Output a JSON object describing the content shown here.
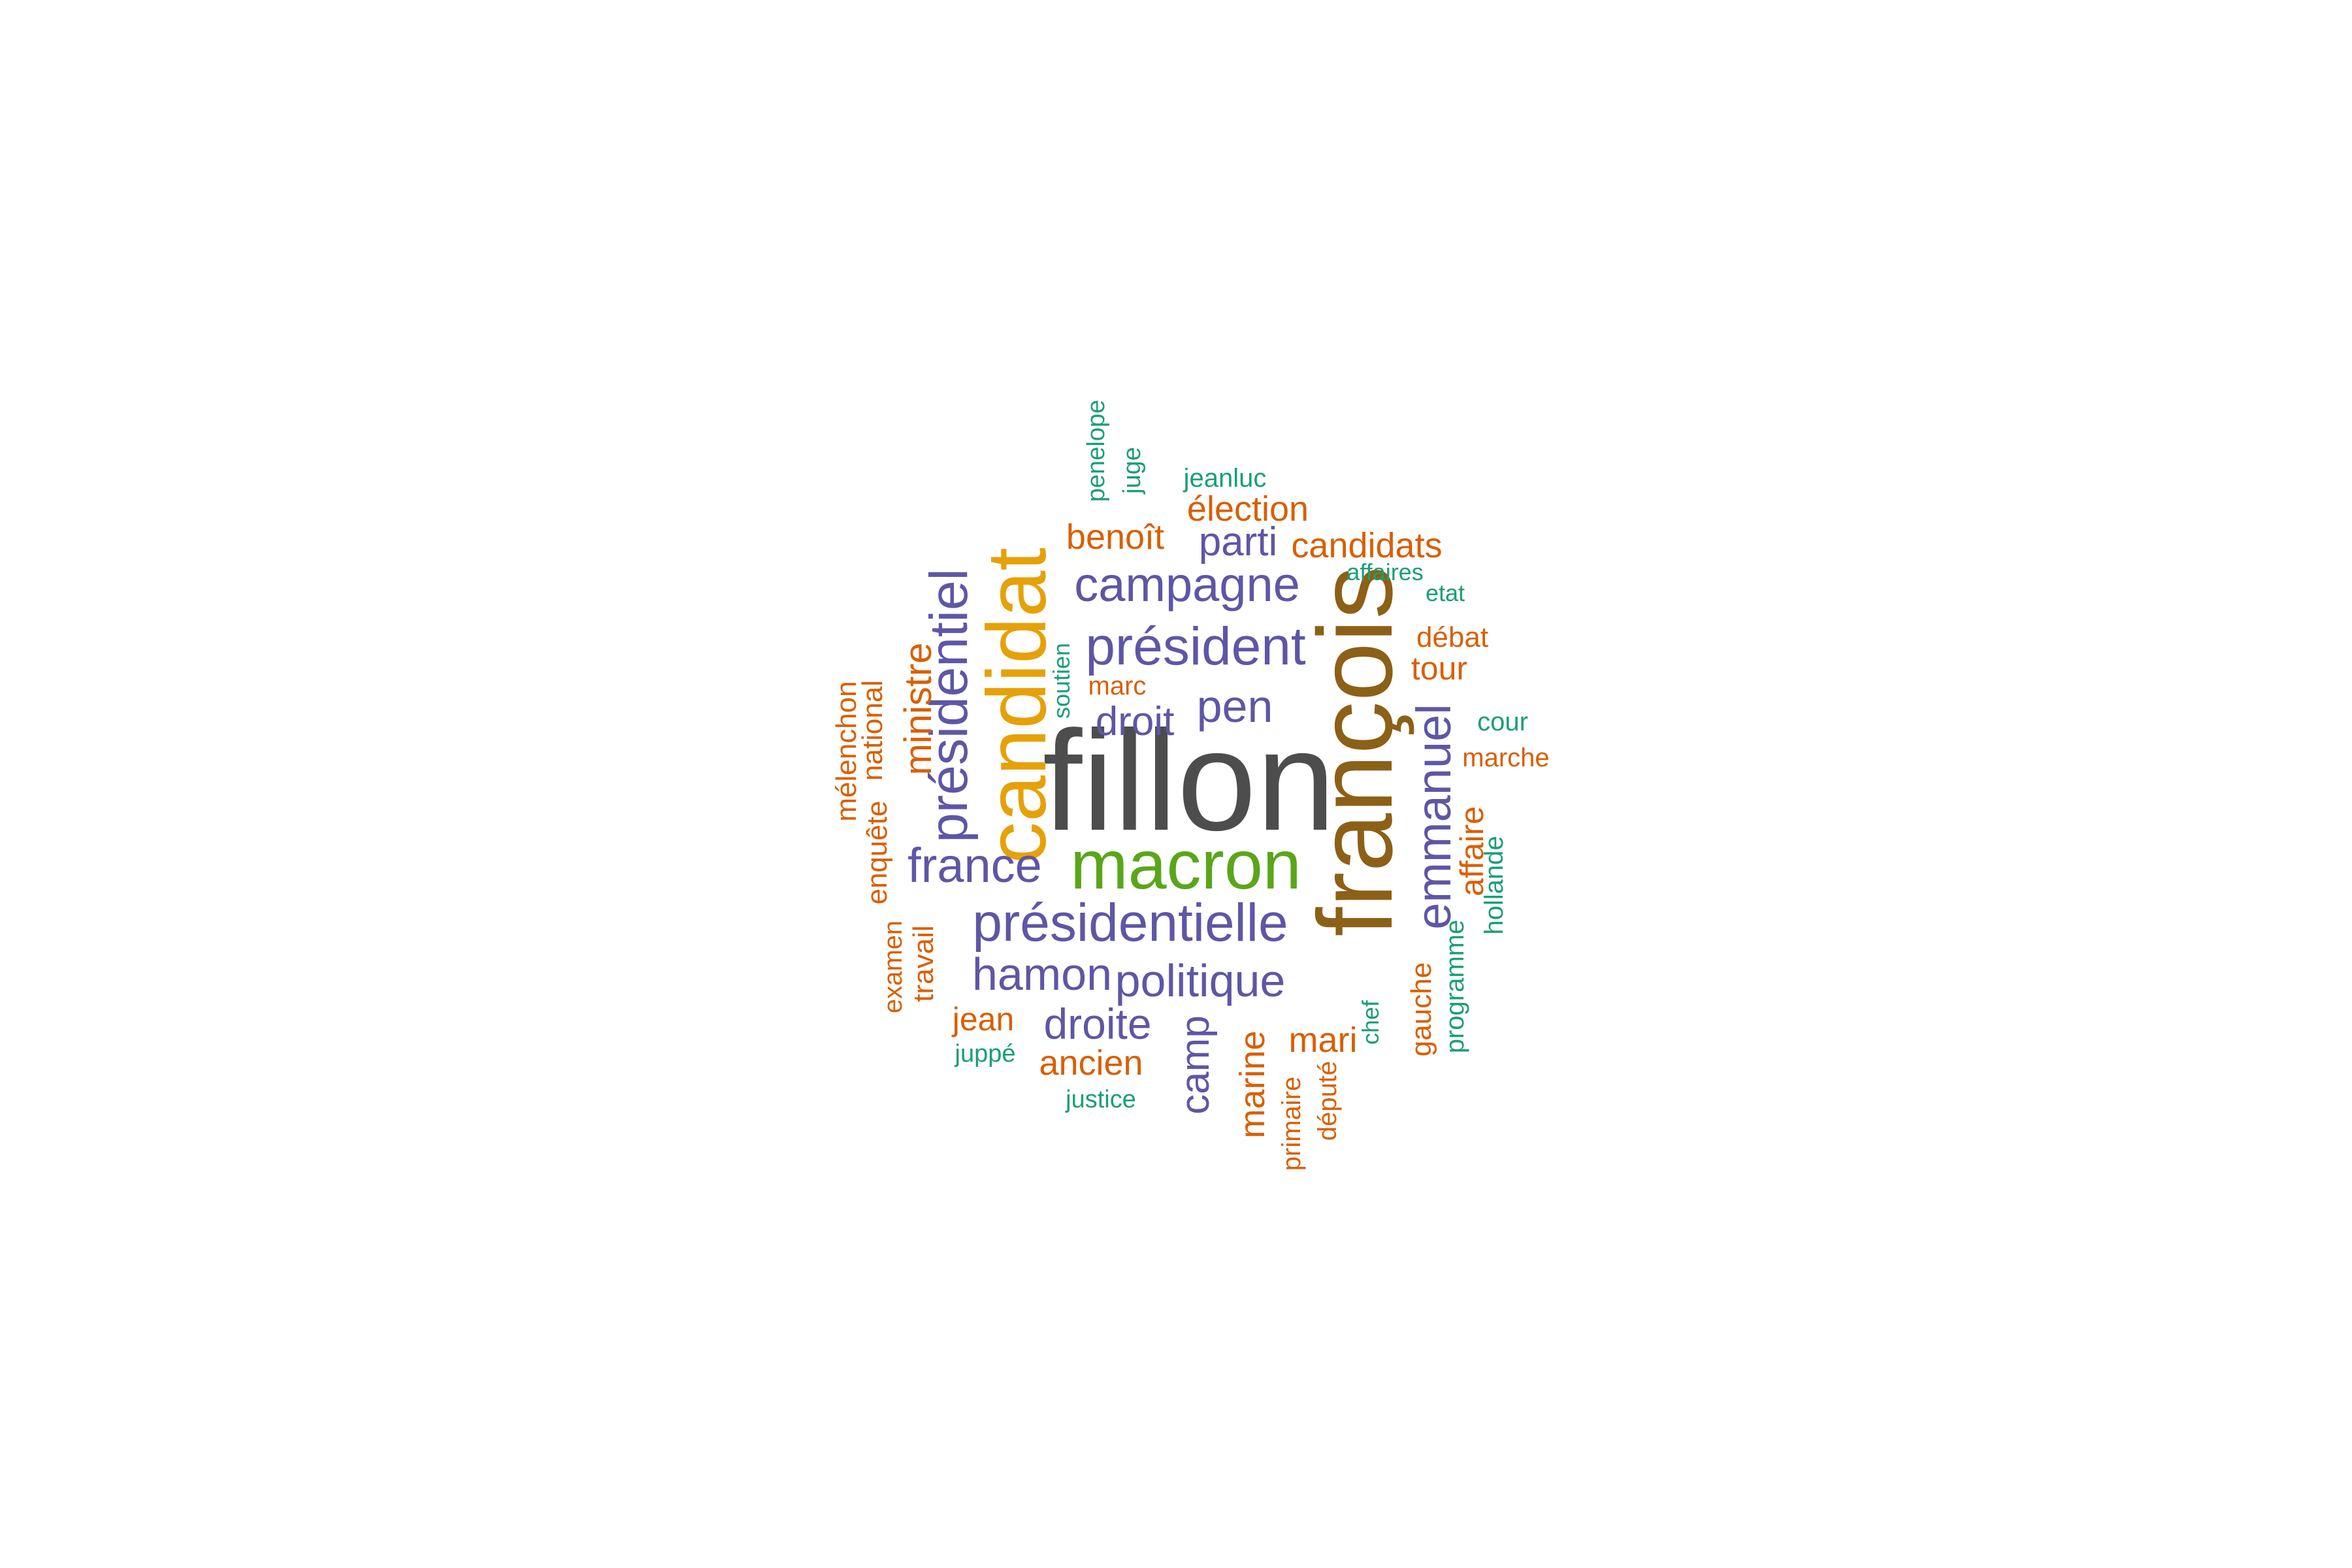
{
  "colors": {
    "gray": "#4d4d4d",
    "orange": "#d95f02",
    "purple": "#5e56a6",
    "teal": "#1b9e77",
    "gold": "#e6a109",
    "green": "#5aa61a",
    "brown": "#8c6016"
  },
  "words": [
    {
      "text": "fillon",
      "color": "gray"
    },
    {
      "text": "françois",
      "color": "brown"
    },
    {
      "text": "candidat",
      "color": "gold"
    },
    {
      "text": "macron",
      "color": "green"
    },
    {
      "text": "présidentielle",
      "color": "purple"
    },
    {
      "text": "président",
      "color": "purple"
    },
    {
      "text": "présidentiel",
      "color": "purple"
    },
    {
      "text": "campagne",
      "color": "purple"
    },
    {
      "text": "france",
      "color": "purple"
    },
    {
      "text": "emmanuel",
      "color": "purple"
    },
    {
      "text": "hamon",
      "color": "purple"
    },
    {
      "text": "politique",
      "color": "purple"
    },
    {
      "text": "pen",
      "color": "purple"
    },
    {
      "text": "droite",
      "color": "purple"
    },
    {
      "text": "parti",
      "color": "purple"
    },
    {
      "text": "droit",
      "color": "purple"
    },
    {
      "text": "camp",
      "color": "purple"
    },
    {
      "text": "ministre",
      "color": "orange"
    },
    {
      "text": "benoît",
      "color": "orange"
    },
    {
      "text": "élection",
      "color": "orange"
    },
    {
      "text": "candidats",
      "color": "orange"
    },
    {
      "text": "marine",
      "color": "orange"
    },
    {
      "text": "mari",
      "color": "orange"
    },
    {
      "text": "ancien",
      "color": "orange"
    },
    {
      "text": "affaire",
      "color": "orange"
    },
    {
      "text": "tour",
      "color": "orange"
    },
    {
      "text": "jean",
      "color": "orange"
    },
    {
      "text": "débat",
      "color": "orange"
    },
    {
      "text": "gauche",
      "color": "orange"
    },
    {
      "text": "national",
      "color": "orange"
    },
    {
      "text": "mélenchon",
      "color": "orange"
    },
    {
      "text": "enquête",
      "color": "orange"
    },
    {
      "text": "travail",
      "color": "orange"
    },
    {
      "text": "examen",
      "color": "orange"
    },
    {
      "text": "marc",
      "color": "orange"
    },
    {
      "text": "marche",
      "color": "orange"
    },
    {
      "text": "député",
      "color": "orange"
    },
    {
      "text": "primaire",
      "color": "orange"
    },
    {
      "text": "penelope",
      "color": "teal"
    },
    {
      "text": "juge",
      "color": "teal"
    },
    {
      "text": "jeanluc",
      "color": "teal"
    },
    {
      "text": "affaires",
      "color": "teal"
    },
    {
      "text": "etat",
      "color": "teal"
    },
    {
      "text": "cour",
      "color": "teal"
    },
    {
      "text": "hollande",
      "color": "teal"
    },
    {
      "text": "programme",
      "color": "teal"
    },
    {
      "text": "chef",
      "color": "teal"
    },
    {
      "text": "soutien",
      "color": "teal"
    },
    {
      "text": "juppé",
      "color": "teal"
    },
    {
      "text": "justice",
      "color": "teal"
    }
  ]
}
